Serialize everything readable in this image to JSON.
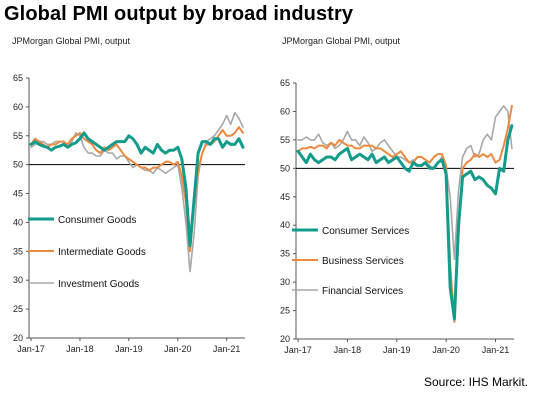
{
  "title": "Global PMI output by broad industry",
  "source": "Source: IHS Markit.",
  "colors": {
    "teal": "#139b8c",
    "orange": "#eb8a40",
    "grey": "#a8a8a8",
    "axis": "#000000"
  },
  "chart_data": [
    {
      "type": "line",
      "subtitle": "JPMorgan Global PMI, output",
      "ylim": [
        20,
        65
      ],
      "yticks": [
        20,
        25,
        30,
        35,
        40,
        45,
        50,
        55,
        60,
        65
      ],
      "xticks": [
        "Jan-17",
        "Jan-18",
        "Jan-19",
        "Jan-20",
        "Jan-21"
      ],
      "x_start": "2017-01",
      "x_end": "2021-05",
      "reference_line": 50,
      "grid": false,
      "legend_position": "lower-left",
      "series": [
        {
          "name": "Consumer Goods",
          "color": "#139b8c",
          "values": [
            53.5,
            54.0,
            53.5,
            53.2,
            53.0,
            52.5,
            53.0,
            53.2,
            53.5,
            53.0,
            53.5,
            53.8,
            54.5,
            55.5,
            54.5,
            54.0,
            53.5,
            53.0,
            52.5,
            53.0,
            53.5,
            54.0,
            54.0,
            54.0,
            55.0,
            54.5,
            53.5,
            52.0,
            53.0,
            52.5,
            52.0,
            53.5,
            52.5,
            52.0,
            52.5,
            52.5,
            53.0,
            51.0,
            46.0,
            36.0,
            44.0,
            52.0,
            54.0,
            54.0,
            53.5,
            54.5,
            54.5,
            53.0,
            54.0,
            53.5,
            53.5,
            54.5,
            53.0
          ]
        },
        {
          "name": "Intermediate Goods",
          "color": "#eb8a40",
          "values": [
            53.5,
            54.5,
            54.0,
            53.5,
            53.0,
            53.5,
            53.5,
            54.0,
            54.0,
            53.5,
            54.5,
            55.0,
            55.5,
            54.5,
            54.0,
            53.5,
            52.5,
            52.0,
            53.0,
            52.5,
            53.0,
            53.5,
            52.5,
            51.5,
            51.0,
            50.5,
            50.0,
            49.5,
            49.5,
            49.0,
            49.5,
            49.5,
            50.0,
            50.5,
            50.5,
            50.0,
            50.5,
            48.0,
            43.5,
            35.0,
            43.0,
            49.0,
            52.0,
            53.5,
            53.5,
            54.0,
            55.0,
            56.0,
            55.0,
            55.0,
            55.5,
            56.5,
            55.5
          ]
        },
        {
          "name": "Investment Goods",
          "color": "#a8a8a8",
          "values": [
            53.0,
            53.5,
            54.0,
            54.0,
            53.5,
            53.5,
            54.0,
            54.0,
            54.0,
            53.0,
            54.0,
            55.5,
            55.0,
            53.0,
            52.0,
            52.0,
            51.5,
            51.5,
            52.5,
            52.0,
            52.0,
            51.0,
            51.5,
            51.5,
            50.5,
            49.5,
            50.0,
            49.5,
            49.0,
            49.0,
            48.5,
            49.5,
            49.0,
            48.5,
            49.0,
            49.5,
            50.0,
            46.0,
            40.0,
            31.5,
            38.0,
            48.0,
            52.0,
            54.0,
            54.5,
            55.0,
            56.0,
            57.0,
            58.5,
            57.0,
            59.0,
            58.0,
            56.5
          ]
        }
      ]
    },
    {
      "type": "line",
      "subtitle": "JPMorgan Global PMI, output",
      "ylim": [
        20,
        65
      ],
      "yticks": [
        20,
        25,
        30,
        35,
        40,
        45,
        50,
        55,
        60,
        65
      ],
      "xticks": [
        "Jan-17",
        "Jan-18",
        "Jan-19",
        "Jan-20",
        "Jan-21"
      ],
      "x_start": "2017-01",
      "x_end": "2021-05",
      "reference_line": 50,
      "grid": false,
      "legend_position": "lower-left",
      "series": [
        {
          "name": "Consumer Services",
          "color": "#139b8c",
          "values": [
            53.0,
            52.0,
            51.0,
            52.5,
            51.5,
            51.0,
            51.5,
            52.0,
            52.0,
            51.5,
            52.5,
            53.0,
            53.5,
            51.5,
            52.0,
            52.5,
            52.0,
            51.5,
            52.5,
            51.0,
            51.5,
            52.0,
            51.0,
            51.5,
            52.0,
            51.0,
            50.0,
            49.5,
            51.0,
            50.5,
            50.5,
            51.0,
            50.0,
            50.0,
            51.0,
            51.5,
            49.0,
            29.0,
            23.5,
            40.0,
            48.5,
            49.0,
            49.5,
            48.0,
            48.5,
            48.0,
            47.0,
            46.5,
            45.5,
            50.0,
            49.5,
            55.0,
            57.5
          ]
        },
        {
          "name": "Business Services",
          "color": "#eb8a40",
          "values": [
            53.0,
            53.5,
            53.5,
            53.8,
            53.5,
            54.0,
            54.0,
            53.5,
            54.5,
            54.0,
            55.0,
            54.5,
            54.0,
            54.0,
            53.5,
            53.5,
            54.0,
            54.0,
            54.0,
            53.5,
            53.5,
            53.0,
            52.5,
            52.0,
            52.5,
            53.0,
            52.0,
            51.0,
            51.0,
            52.0,
            52.0,
            51.5,
            51.0,
            52.0,
            52.5,
            52.5,
            50.5,
            33.0,
            23.0,
            38.0,
            50.0,
            51.0,
            51.5,
            52.5,
            52.0,
            52.5,
            52.0,
            52.5,
            51.0,
            51.5,
            54.0,
            57.0,
            61.0
          ]
        },
        {
          "name": "Financial Services",
          "color": "#a8a8a8",
          "values": [
            55.0,
            55.0,
            55.5,
            55.0,
            55.0,
            56.0,
            54.5,
            54.0,
            54.5,
            53.5,
            54.0,
            55.0,
            56.5,
            55.0,
            55.0,
            54.0,
            55.5,
            54.5,
            53.0,
            53.5,
            54.5,
            55.0,
            54.0,
            53.0,
            52.0,
            52.0,
            51.5,
            51.0,
            51.5,
            50.5,
            50.5,
            51.0,
            50.5,
            50.0,
            51.0,
            52.0,
            50.0,
            45.0,
            34.0,
            46.0,
            52.0,
            53.5,
            54.0,
            52.0,
            52.5,
            55.0,
            56.0,
            55.0,
            59.0,
            60.0,
            61.0,
            60.0,
            53.5
          ]
        }
      ]
    }
  ]
}
